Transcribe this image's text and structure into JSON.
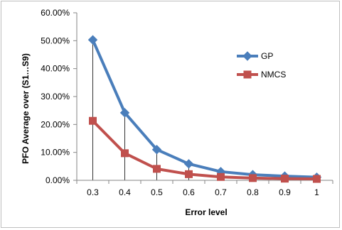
{
  "chart_data": {
    "type": "line",
    "x": [
      "0.3",
      "0.4",
      "0.5",
      "0.6",
      "0.7",
      "0.8",
      "0.9",
      "1"
    ],
    "series": [
      {
        "name": "GP",
        "values": [
          50.3,
          24.2,
          11.0,
          5.9,
          3.1,
          2.0,
          1.5,
          1.1
        ],
        "color": "#4a7ebb",
        "marker": "diamond"
      },
      {
        "name": "NMCS",
        "values": [
          21.3,
          9.7,
          4.1,
          2.2,
          1.2,
          0.8,
          0.6,
          0.5
        ],
        "color": "#c0504d",
        "marker": "square"
      }
    ],
    "xlabel": "Error level",
    "ylabel": "PFO Average over (S1…S9)",
    "ylim": [
      0,
      60
    ],
    "yticks": [
      "0.00%",
      "10.00%",
      "20.00%",
      "30.00%",
      "40.00%",
      "50.00%",
      "60.00%"
    ],
    "drop_lines": true,
    "grid": false,
    "legend_position": "right"
  }
}
